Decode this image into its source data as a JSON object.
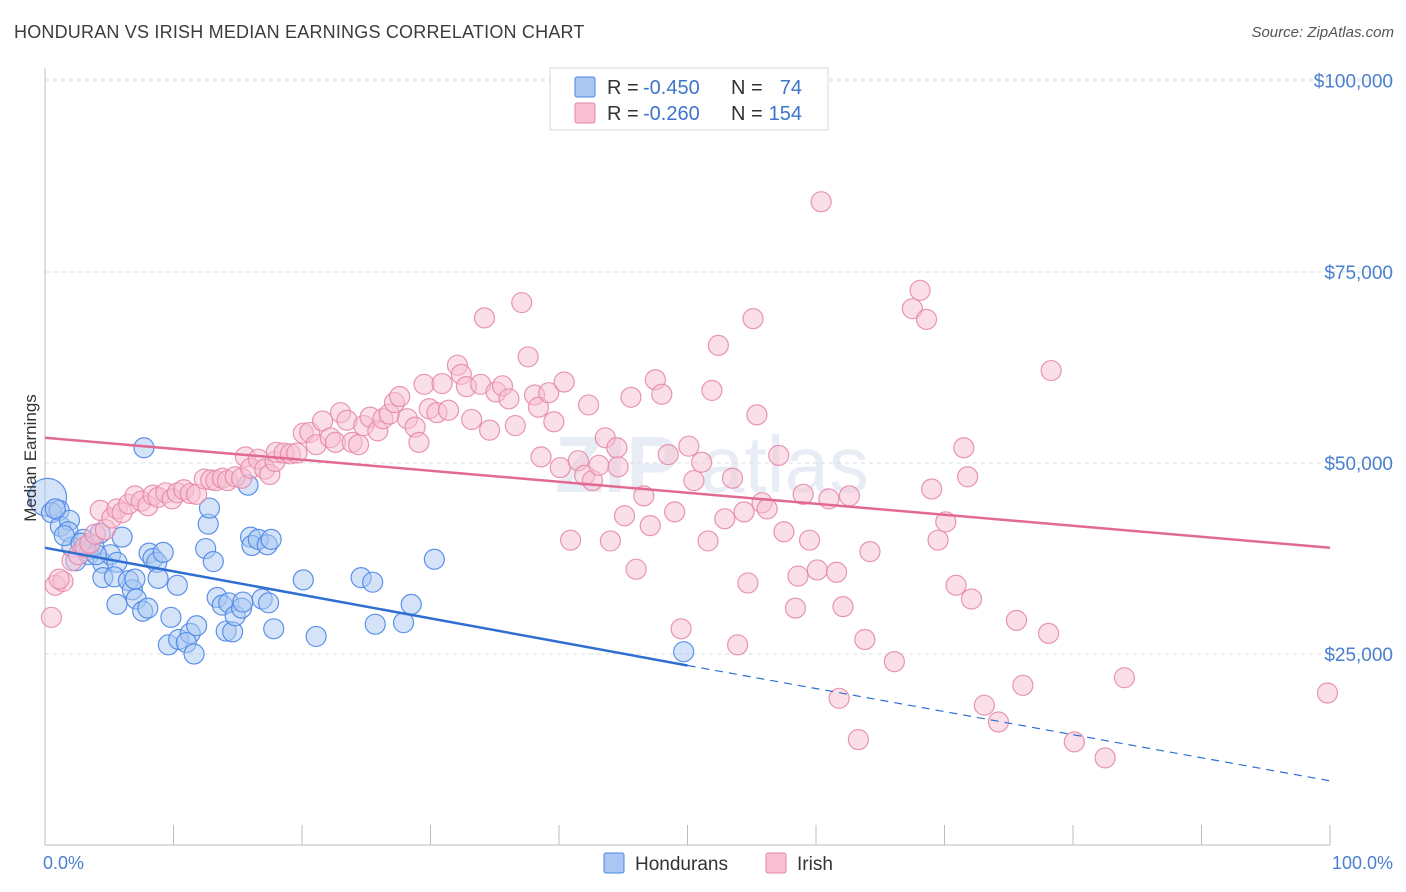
{
  "title": "HONDURAN VS IRISH MEDIAN EARNINGS CORRELATION CHART",
  "source": "Source: ZipAtlas.com",
  "watermark": {
    "zip": "ZIP",
    "atlas": "atlas"
  },
  "colors": {
    "blue": "#4a86e8",
    "blue_fill": "#a9c7f1",
    "blue_line": "#2f6fd2",
    "pink": "#e68aa8",
    "pink_fill": "#f7bfd1",
    "pink_line": "#e16a92",
    "tick": "#4a7fd0"
  },
  "legend": {
    "rows": [
      {
        "r_label": "R =",
        "r_value": "-0.450",
        "n_label": "N =",
        "n_value": "74"
      },
      {
        "r_label": "R =",
        "r_value": "-0.260",
        "n_label": "N =",
        "n_value": "154"
      }
    ]
  },
  "bottom_legend": [
    "Hondurans",
    "Irish"
  ],
  "chart_data": {
    "type": "scatter",
    "title": "HONDURAN VS IRISH MEDIAN EARNINGS CORRELATION CHART",
    "xlabel": "",
    "ylabel": "Median Earnings",
    "xlim": [
      0,
      100
    ],
    "ylim": [
      0,
      105000
    ],
    "x_tick_labels": [
      "0.0%",
      "100.0%"
    ],
    "y_ticks": [
      {
        "value": 25000,
        "label": "$25,000"
      },
      {
        "value": 50000,
        "label": "$50,000"
      },
      {
        "value": 75000,
        "label": "$75,000"
      },
      {
        "value": 100000,
        "label": "$100,000"
      }
    ],
    "series": [
      {
        "name": "Hondurans",
        "color": "blue",
        "trend": {
          "x0": 0,
          "y0": 38900,
          "x1": 50,
          "y1": 23500,
          "dash_to_x": 100,
          "dash_to_y": 8400
        },
        "points": [
          [
            0.2,
            45500,
            "big"
          ],
          [
            0.5,
            43500
          ],
          [
            1.1,
            43800
          ],
          [
            1.2,
            41700
          ],
          [
            1.9,
            42500
          ],
          [
            1.8,
            41000
          ],
          [
            2.1,
            39000
          ],
          [
            2.4,
            37200
          ],
          [
            3.0,
            40000
          ],
          [
            3.2,
            38500
          ],
          [
            3.4,
            38000
          ],
          [
            3.8,
            39200
          ],
          [
            4.3,
            40800
          ],
          [
            4.5,
            36900
          ],
          [
            4.5,
            35000
          ],
          [
            5.1,
            38000
          ],
          [
            5.6,
            37000
          ],
          [
            5.4,
            35100
          ],
          [
            5.6,
            31500
          ],
          [
            6.0,
            40300
          ],
          [
            6.5,
            34600
          ],
          [
            6.8,
            33400
          ],
          [
            7.1,
            32200
          ],
          [
            7.0,
            34800
          ],
          [
            7.6,
            30600
          ],
          [
            8.0,
            31000
          ],
          [
            7.7,
            52000
          ],
          [
            8.1,
            38200
          ],
          [
            8.4,
            37500
          ],
          [
            8.7,
            37000
          ],
          [
            8.8,
            34900
          ],
          [
            9.2,
            38300
          ],
          [
            10.3,
            34000
          ],
          [
            9.8,
            29800
          ],
          [
            9.6,
            26200
          ],
          [
            10.4,
            26900
          ],
          [
            11.3,
            27700
          ],
          [
            11.0,
            26500
          ],
          [
            11.6,
            25000
          ],
          [
            11.8,
            28700
          ],
          [
            12.5,
            38800
          ],
          [
            12.7,
            42000
          ],
          [
            12.8,
            44100
          ],
          [
            13.1,
            37100
          ],
          [
            13.4,
            32400
          ],
          [
            13.8,
            31400
          ],
          [
            14.1,
            28000
          ],
          [
            14.3,
            31700
          ],
          [
            14.6,
            27900
          ],
          [
            14.8,
            30000
          ],
          [
            15.3,
            31000
          ],
          [
            15.4,
            31800
          ],
          [
            15.8,
            47100
          ],
          [
            16.0,
            40300
          ],
          [
            16.1,
            39200
          ],
          [
            16.6,
            40000
          ],
          [
            16.9,
            32200
          ],
          [
            17.3,
            39300
          ],
          [
            17.4,
            31700
          ],
          [
            17.6,
            40000
          ],
          [
            17.8,
            28300
          ],
          [
            20.1,
            34700
          ],
          [
            21.1,
            27300
          ],
          [
            24.6,
            35000
          ],
          [
            25.5,
            34400
          ],
          [
            25.7,
            28900
          ],
          [
            27.9,
            29100
          ],
          [
            28.5,
            31500
          ],
          [
            30.3,
            37400
          ],
          [
            49.7,
            25300
          ],
          [
            1.5,
            40500
          ],
          [
            2.8,
            39500
          ],
          [
            0.8,
            44000
          ],
          [
            4.0,
            38000
          ]
        ]
      },
      {
        "name": "Irish",
        "color": "pink",
        "trend": {
          "x0": 0,
          "y0": 53300,
          "x1": 100,
          "y1": 38900
        },
        "points": [
          [
            0.5,
            29800
          ],
          [
            0.8,
            34000
          ],
          [
            1.4,
            34500
          ],
          [
            2.1,
            37200
          ],
          [
            2.6,
            38000
          ],
          [
            3.1,
            39000
          ],
          [
            3.5,
            39500
          ],
          [
            3.9,
            40700
          ],
          [
            4.3,
            43800
          ],
          [
            4.7,
            41300
          ],
          [
            5.2,
            42800
          ],
          [
            5.6,
            44000
          ],
          [
            6.0,
            43500
          ],
          [
            6.5,
            44600
          ],
          [
            7.0,
            45700
          ],
          [
            7.5,
            45000
          ],
          [
            8.0,
            44400
          ],
          [
            8.4,
            45800
          ],
          [
            8.8,
            45500
          ],
          [
            9.4,
            46100
          ],
          [
            9.9,
            45300
          ],
          [
            10.3,
            46100
          ],
          [
            10.8,
            46500
          ],
          [
            11.3,
            46000
          ],
          [
            11.8,
            45900
          ],
          [
            12.4,
            47900
          ],
          [
            12.9,
            47800
          ],
          [
            13.3,
            47700
          ],
          [
            13.8,
            48000
          ],
          [
            14.2,
            47700
          ],
          [
            14.8,
            48200
          ],
          [
            15.3,
            48000
          ],
          [
            15.6,
            50800
          ],
          [
            16.0,
            49300
          ],
          [
            16.6,
            50500
          ],
          [
            17.1,
            49200
          ],
          [
            17.5,
            48500
          ],
          [
            17.9,
            50200
          ],
          [
            18.0,
            51400
          ],
          [
            18.6,
            51300
          ],
          [
            19.1,
            51200
          ],
          [
            19.6,
            51300
          ],
          [
            20.1,
            53900
          ],
          [
            20.6,
            54000
          ],
          [
            21.1,
            52400
          ],
          [
            21.6,
            55500
          ],
          [
            22.2,
            53300
          ],
          [
            22.6,
            52700
          ],
          [
            23.0,
            56600
          ],
          [
            23.5,
            55600
          ],
          [
            23.9,
            52700
          ],
          [
            24.4,
            52400
          ],
          [
            24.8,
            54900
          ],
          [
            25.3,
            56000
          ],
          [
            25.9,
            54200
          ],
          [
            26.3,
            55800
          ],
          [
            26.8,
            56400
          ],
          [
            27.2,
            57900
          ],
          [
            27.6,
            58700
          ],
          [
            28.2,
            55800
          ],
          [
            28.8,
            54700
          ],
          [
            29.1,
            52700
          ],
          [
            29.5,
            60300
          ],
          [
            29.9,
            57100
          ],
          [
            30.5,
            56600
          ],
          [
            30.9,
            60400
          ],
          [
            31.4,
            56900
          ],
          [
            32.1,
            62800
          ],
          [
            32.4,
            61600
          ],
          [
            32.8,
            60000
          ],
          [
            33.2,
            55700
          ],
          [
            33.9,
            60300
          ],
          [
            34.2,
            69000
          ],
          [
            34.6,
            54300
          ],
          [
            35.1,
            59300
          ],
          [
            35.6,
            60100
          ],
          [
            36.1,
            58400
          ],
          [
            36.6,
            54900
          ],
          [
            37.1,
            71000
          ],
          [
            37.6,
            63900
          ],
          [
            38.1,
            58900
          ],
          [
            38.4,
            57300
          ],
          [
            38.6,
            50800
          ],
          [
            39.2,
            59200
          ],
          [
            39.6,
            55400
          ],
          [
            40.1,
            49400
          ],
          [
            40.4,
            60600
          ],
          [
            40.9,
            39900
          ],
          [
            41.5,
            50300
          ],
          [
            42.0,
            48400
          ],
          [
            42.3,
            57600
          ],
          [
            42.6,
            47700
          ],
          [
            43.1,
            49700
          ],
          [
            43.6,
            53300
          ],
          [
            44.0,
            39800
          ],
          [
            44.5,
            52000
          ],
          [
            44.6,
            49500
          ],
          [
            45.1,
            43100
          ],
          [
            45.6,
            58600
          ],
          [
            46.0,
            36100
          ],
          [
            46.6,
            45700
          ],
          [
            47.1,
            41800
          ],
          [
            47.5,
            60900
          ],
          [
            48.0,
            59000
          ],
          [
            48.5,
            51100
          ],
          [
            49.0,
            43600
          ],
          [
            49.5,
            28300
          ],
          [
            50.1,
            52200
          ],
          [
            50.5,
            47700
          ],
          [
            51.1,
            50100
          ],
          [
            51.6,
            39800
          ],
          [
            51.9,
            59500
          ],
          [
            52.4,
            65400
          ],
          [
            52.9,
            42700
          ],
          [
            53.5,
            48000
          ],
          [
            53.9,
            26200
          ],
          [
            54.4,
            43600
          ],
          [
            54.7,
            34300
          ],
          [
            55.1,
            68900
          ],
          [
            55.4,
            56300
          ],
          [
            55.8,
            44800
          ],
          [
            56.2,
            44000
          ],
          [
            57.1,
            51000
          ],
          [
            57.5,
            41000
          ],
          [
            58.4,
            31000
          ],
          [
            58.6,
            35200
          ],
          [
            59.0,
            45900
          ],
          [
            59.5,
            39900
          ],
          [
            60.1,
            36000
          ],
          [
            60.4,
            84200
          ],
          [
            61.0,
            45300
          ],
          [
            61.6,
            35700
          ],
          [
            61.8,
            19200
          ],
          [
            62.1,
            31200
          ],
          [
            62.6,
            45700
          ],
          [
            63.3,
            13800
          ],
          [
            63.8,
            26900
          ],
          [
            64.2,
            38400
          ],
          [
            66.1,
            24000
          ],
          [
            67.5,
            70200
          ],
          [
            68.1,
            72600
          ],
          [
            68.6,
            68800
          ],
          [
            69.0,
            46600
          ],
          [
            69.5,
            39900
          ],
          [
            70.1,
            42300
          ],
          [
            70.9,
            34000
          ],
          [
            71.5,
            52000
          ],
          [
            71.8,
            48200
          ],
          [
            72.1,
            32200
          ],
          [
            73.1,
            18300
          ],
          [
            74.2,
            16100
          ],
          [
            75.6,
            29400
          ],
          [
            76.1,
            20900
          ],
          [
            78.1,
            27700
          ],
          [
            78.3,
            62100
          ],
          [
            80.1,
            13500
          ],
          [
            82.5,
            11400
          ],
          [
            84.0,
            21900
          ],
          [
            99.8,
            19900
          ],
          [
            1.1,
            34800
          ]
        ]
      }
    ]
  }
}
